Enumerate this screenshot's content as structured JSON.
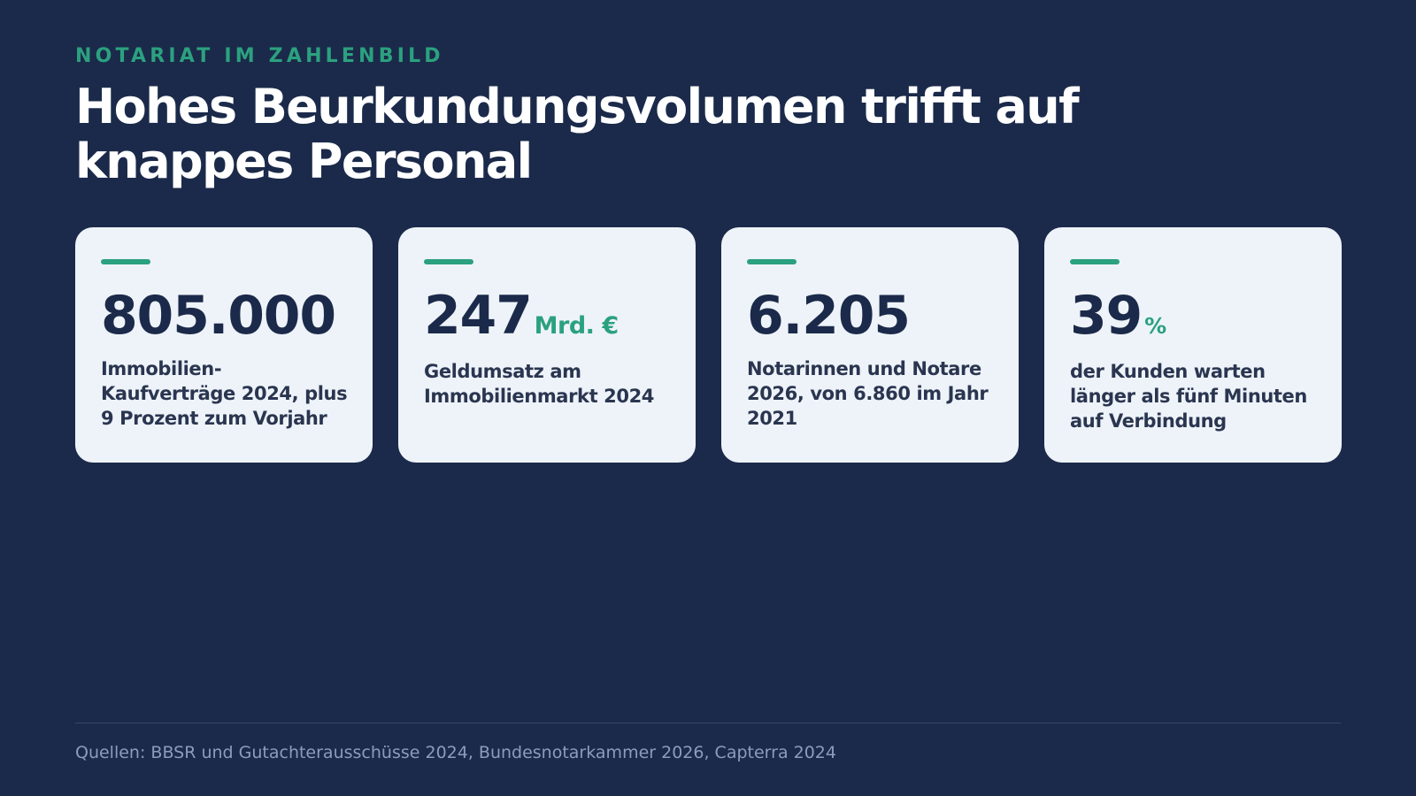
{
  "header": {
    "eyebrow": "NOTARIAT IM ZAHLENBILD",
    "title": "Hohes Beurkundungsvolumen trifft auf knappes Personal"
  },
  "colors": {
    "background": "#1b2a4a",
    "accent": "#2ba17f",
    "card_background": "#eef3f9",
    "heading": "#ffffff",
    "stat_text": "#1b2a4a",
    "sources_text": "#8e9cbb"
  },
  "stats": [
    {
      "value": "805.000",
      "unit": "",
      "caption": "Immobilien-Kaufverträge 2024, plus 9 Prozent zum Vorjahr"
    },
    {
      "value": "247",
      "unit": "Mrd. €",
      "caption": "Geldumsatz am Immobilienmarkt 2024"
    },
    {
      "value": "6.205",
      "unit": "",
      "caption": "Notarinnen und Notare 2026, von 6.860 im Jahr 2021"
    },
    {
      "value": "39",
      "unit": "%",
      "caption": "der Kunden warten länger als fünf Minuten auf Verbindung"
    }
  ],
  "footer": {
    "sources": "Quellen: BBSR und Gutachterausschüsse 2024, Bundesnotarkammer 2026, Capterra 2024"
  }
}
